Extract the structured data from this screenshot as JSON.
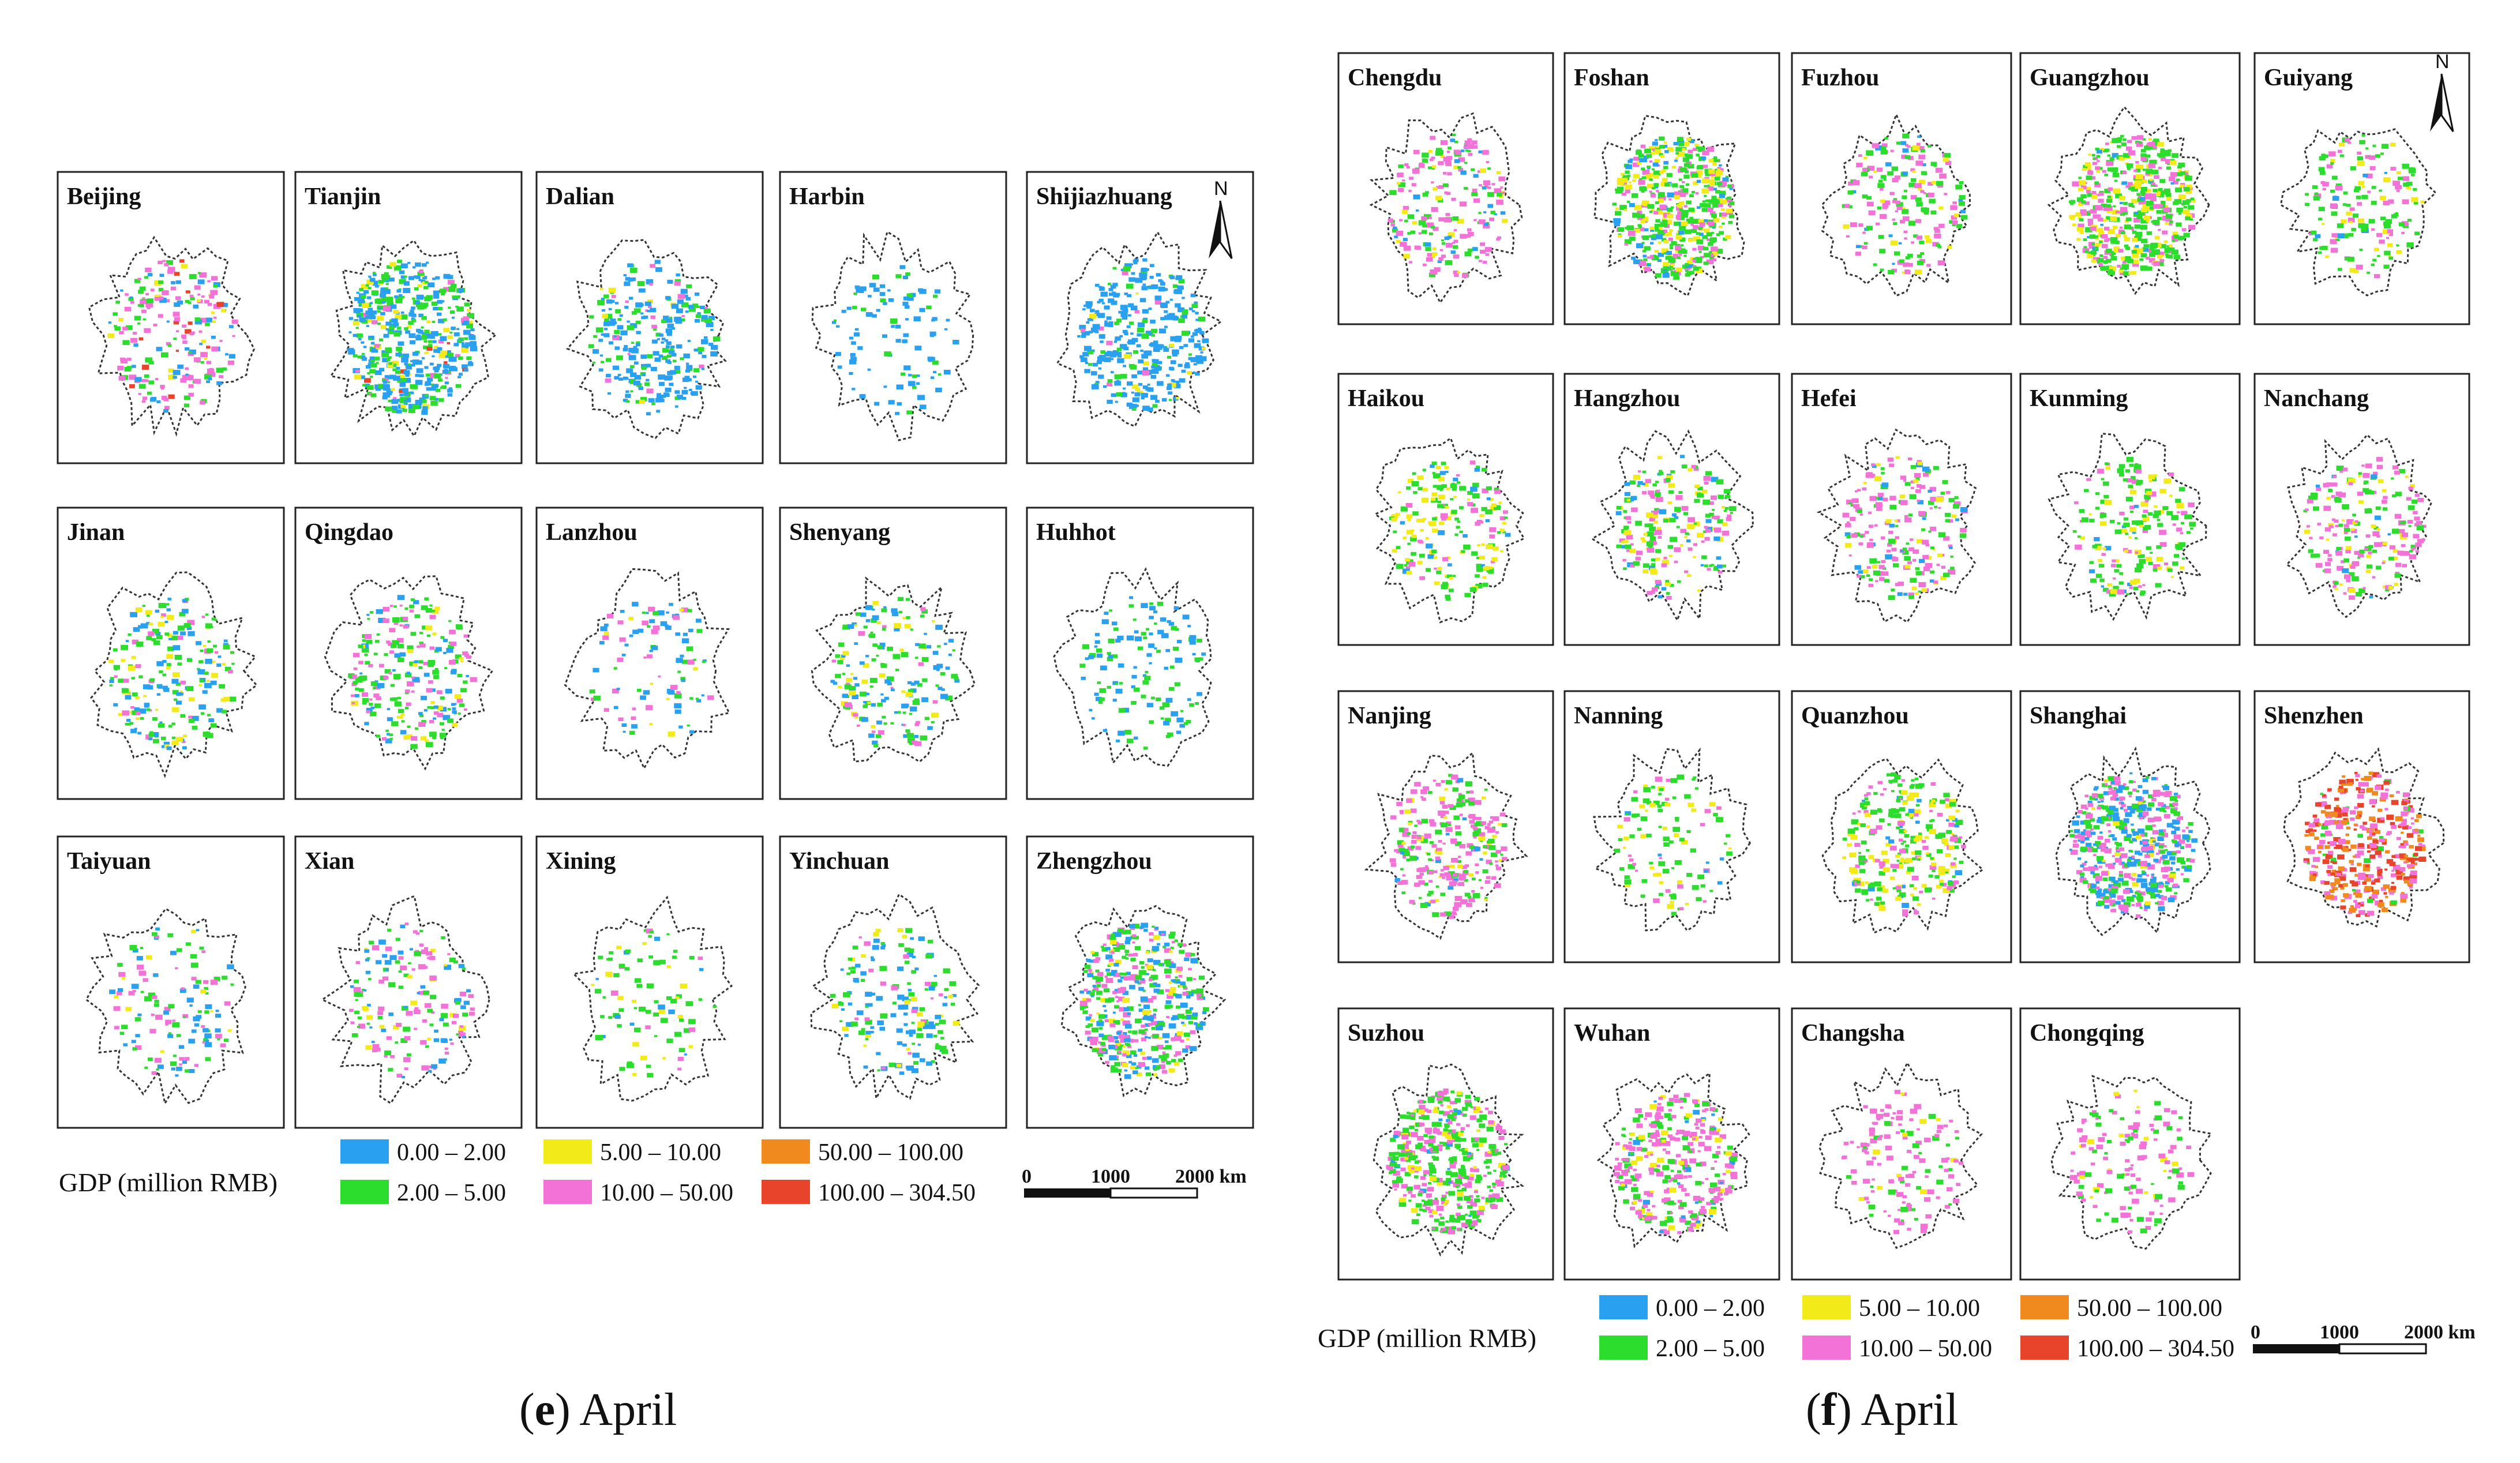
{
  "legend": {
    "title": "GDP (million RMB)",
    "classes": [
      {
        "label": "0.00 – 2.00",
        "color": "#2aa0f0"
      },
      {
        "label": "2.00 – 5.00",
        "color": "#2ddd2d"
      },
      {
        "label": "5.00 – 10.00",
        "color": "#f2ea19"
      },
      {
        "label": "10.00 – 50.00",
        "color": "#f272d8"
      },
      {
        "label": "50.00 – 100.00",
        "color": "#f08a1e"
      },
      {
        "label": "100.00 – 304.50",
        "color": "#e8432b"
      }
    ],
    "scale_ticks": [
      "0",
      "1000",
      "2000 km"
    ],
    "north_label": "N"
  },
  "panels": [
    {
      "caption_letter": "e",
      "caption_month": "April",
      "cities": [
        "Beijing",
        "Tianjin",
        "Dalian",
        "Harbin",
        "Shijiazhuang",
        "Jinan",
        "Qingdao",
        "Lanzhou",
        "Shenyang",
        "Huhhot",
        "Taiyuan",
        "Xian",
        "Xining",
        "Yinchuan",
        "Zhengzhou"
      ],
      "mix": [
        [
          0.25,
          0.2,
          0.05,
          0.45,
          0,
          0.05
        ],
        [
          0.55,
          0.3,
          0.08,
          0.05,
          0,
          0.02
        ],
        [
          0.7,
          0.2,
          0.02,
          0.08,
          0,
          0
        ],
        [
          0.7,
          0.3,
          0,
          0,
          0,
          0
        ],
        [
          0.8,
          0.15,
          0.03,
          0.02,
          0,
          0
        ],
        [
          0.35,
          0.35,
          0.15,
          0.15,
          0,
          0
        ],
        [
          0.2,
          0.4,
          0.1,
          0.3,
          0,
          0
        ],
        [
          0.35,
          0.3,
          0.1,
          0.25,
          0,
          0
        ],
        [
          0.3,
          0.4,
          0.15,
          0.15,
          0,
          0
        ],
        [
          0.6,
          0.4,
          0,
          0,
          0,
          0
        ],
        [
          0.4,
          0.3,
          0.05,
          0.25,
          0,
          0
        ],
        [
          0.2,
          0.3,
          0.1,
          0.4,
          0,
          0
        ],
        [
          0.1,
          0.6,
          0.2,
          0.1,
          0,
          0
        ],
        [
          0.4,
          0.4,
          0.1,
          0.1,
          0,
          0
        ],
        [
          0.3,
          0.35,
          0.1,
          0.25,
          0,
          0
        ]
      ],
      "density": [
        0.35,
        0.9,
        0.45,
        0.12,
        0.6,
        0.35,
        0.4,
        0.12,
        0.3,
        0.18,
        0.18,
        0.25,
        0.1,
        0.25,
        0.8
      ]
    },
    {
      "caption_letter": "f",
      "caption_month": "April",
      "cities": [
        "Chengdu",
        "Foshan",
        "Fuzhou",
        "Guangzhou",
        "Guiyang",
        "Haikou",
        "Hangzhou",
        "Hefei",
        "Kunming",
        "Nanchang",
        "Nanjing",
        "Nanning",
        "Quanzhou",
        "Shanghai",
        "Shenzhen",
        "Suzhou",
        "Wuhan",
        "Changsha",
        "Chongqing"
      ],
      "mix": [
        [
          0.1,
          0.3,
          0.1,
          0.5,
          0,
          0
        ],
        [
          0.1,
          0.45,
          0.25,
          0.2,
          0,
          0
        ],
        [
          0.1,
          0.4,
          0.1,
          0.4,
          0,
          0
        ],
        [
          0.05,
          0.5,
          0.2,
          0.25,
          0,
          0
        ],
        [
          0.05,
          0.5,
          0.15,
          0.3,
          0,
          0
        ],
        [
          0.1,
          0.45,
          0.3,
          0.15,
          0,
          0
        ],
        [
          0.1,
          0.4,
          0.2,
          0.3,
          0,
          0
        ],
        [
          0.1,
          0.3,
          0.1,
          0.5,
          0,
          0
        ],
        [
          0.05,
          0.5,
          0.2,
          0.25,
          0,
          0
        ],
        [
          0.05,
          0.3,
          0.15,
          0.5,
          0,
          0
        ],
        [
          0.05,
          0.3,
          0.1,
          0.55,
          0,
          0
        ],
        [
          0.05,
          0.5,
          0.2,
          0.25,
          0,
          0
        ],
        [
          0.05,
          0.45,
          0.3,
          0.2,
          0,
          0
        ],
        [
          0.35,
          0.25,
          0.05,
          0.35,
          0,
          0
        ],
        [
          0,
          0.05,
          0,
          0.35,
          0.3,
          0.3
        ],
        [
          0.05,
          0.5,
          0.1,
          0.35,
          0,
          0
        ],
        [
          0.05,
          0.25,
          0.1,
          0.6,
          0,
          0
        ],
        [
          0,
          0.2,
          0.1,
          0.7,
          0,
          0
        ],
        [
          0,
          0.3,
          0.1,
          0.6,
          0,
          0
        ]
      ],
      "density": [
        0.35,
        0.9,
        0.3,
        0.9,
        0.25,
        0.3,
        0.35,
        0.35,
        0.3,
        0.35,
        0.45,
        0.15,
        0.5,
        0.9,
        0.7,
        0.75,
        0.55,
        0.2,
        0.2
      ]
    }
  ]
}
